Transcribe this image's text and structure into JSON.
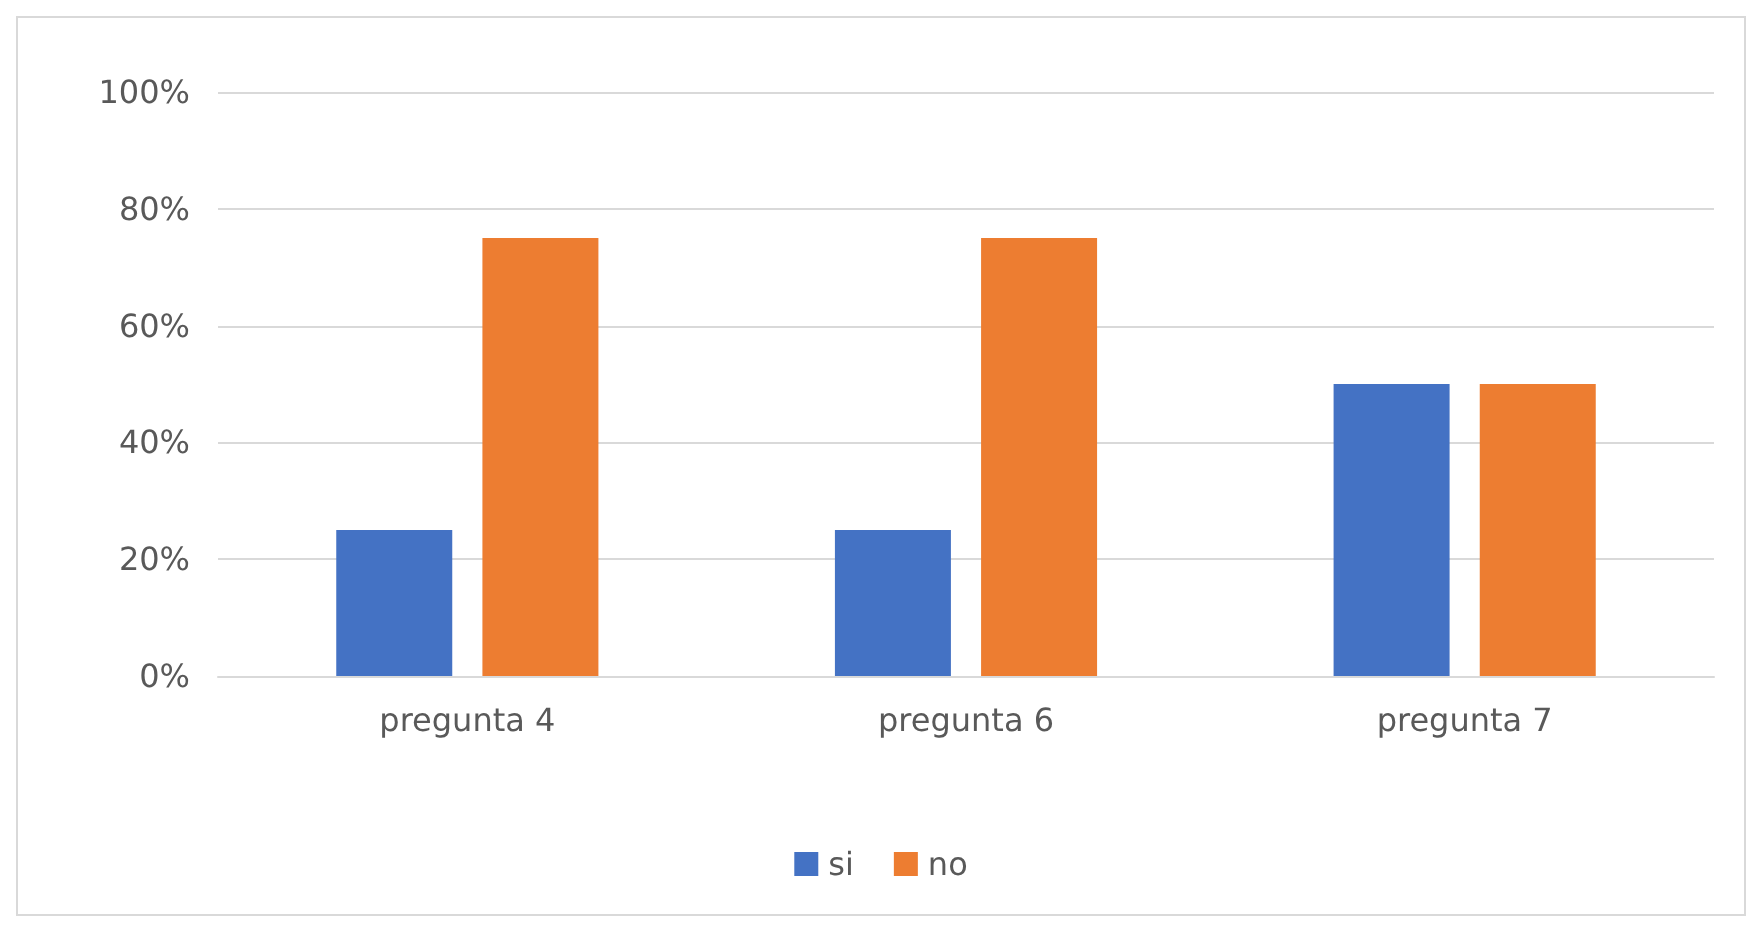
{
  "chart_data": {
    "type": "bar",
    "categories": [
      "pregunta 4",
      "pregunta 6",
      "pregunta 7"
    ],
    "series": [
      {
        "name": "si",
        "color": "#4472c4",
        "values": [
          25,
          25,
          50
        ]
      },
      {
        "name": "no",
        "color": "#ed7d31",
        "values": [
          75,
          75,
          50
        ]
      }
    ],
    "ylim": [
      0,
      100
    ],
    "yticks": [
      {
        "value": 0,
        "label": "0%"
      },
      {
        "value": 20,
        "label": "20%"
      },
      {
        "value": 40,
        "label": "40%"
      },
      {
        "value": 60,
        "label": "60%"
      },
      {
        "value": 80,
        "label": "80%"
      },
      {
        "value": 100,
        "label": "100%"
      }
    ],
    "grid": "y",
    "legend": "bottom"
  }
}
